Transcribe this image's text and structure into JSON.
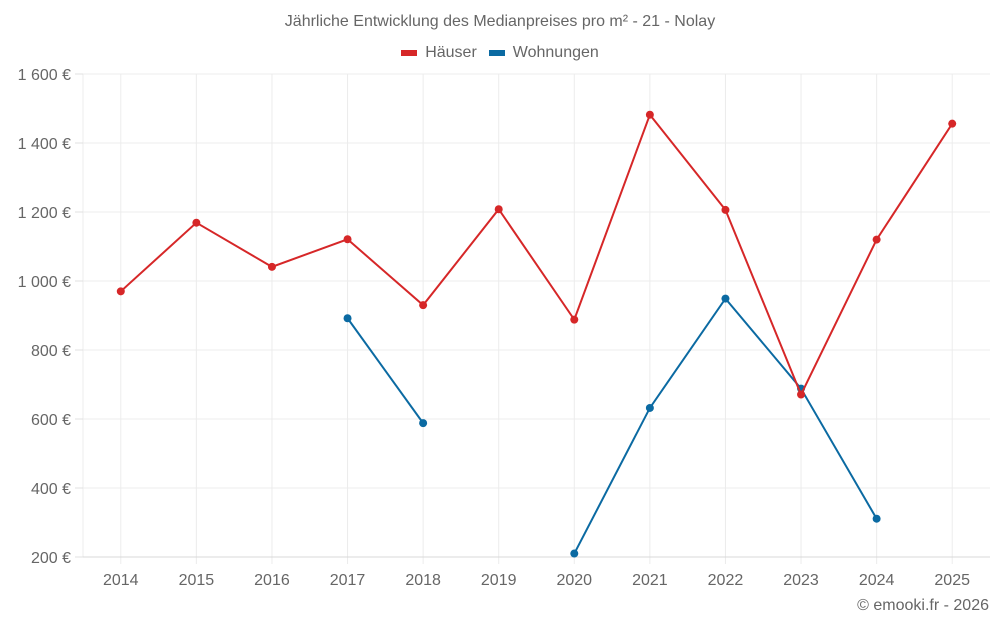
{
  "title": "Jährliche Entwicklung des Medianpreises pro m² - 21 - Nolay",
  "legend": [
    {
      "label": "Häuser",
      "color": "#d62728"
    },
    {
      "label": "Wohnungen",
      "color": "#0b6aa2"
    }
  ],
  "footer": "© emooki.fr - 2026",
  "chart_data": {
    "type": "line",
    "title": "Jährliche Entwicklung des Medianpreises pro m² - 21 - Nolay",
    "xlabel": "",
    "ylabel": "",
    "categories": [
      "2014",
      "2015",
      "2016",
      "2017",
      "2018",
      "2019",
      "2020",
      "2021",
      "2022",
      "2023",
      "2024",
      "2025"
    ],
    "ylim": [
      200,
      1600
    ],
    "yticks": [
      200,
      400,
      600,
      800,
      1000,
      1200,
      1400,
      1600
    ],
    "ytick_labels": [
      "200 €",
      "400 €",
      "600 €",
      "800 €",
      "1 000 €",
      "1 200 €",
      "1 400 €",
      "1 600 €"
    ],
    "grid": true,
    "legend_position": "top",
    "series": [
      {
        "name": "Häuser",
        "color": "#d62728",
        "values": [
          970,
          1169,
          1041,
          1121,
          930,
          1208,
          888,
          1482,
          1206,
          671,
          1120,
          1456
        ]
      },
      {
        "name": "Wohnungen",
        "color": "#0b6aa2",
        "values": [
          null,
          null,
          null,
          892,
          588,
          null,
          210,
          632,
          949,
          688,
          311,
          null
        ]
      }
    ]
  }
}
